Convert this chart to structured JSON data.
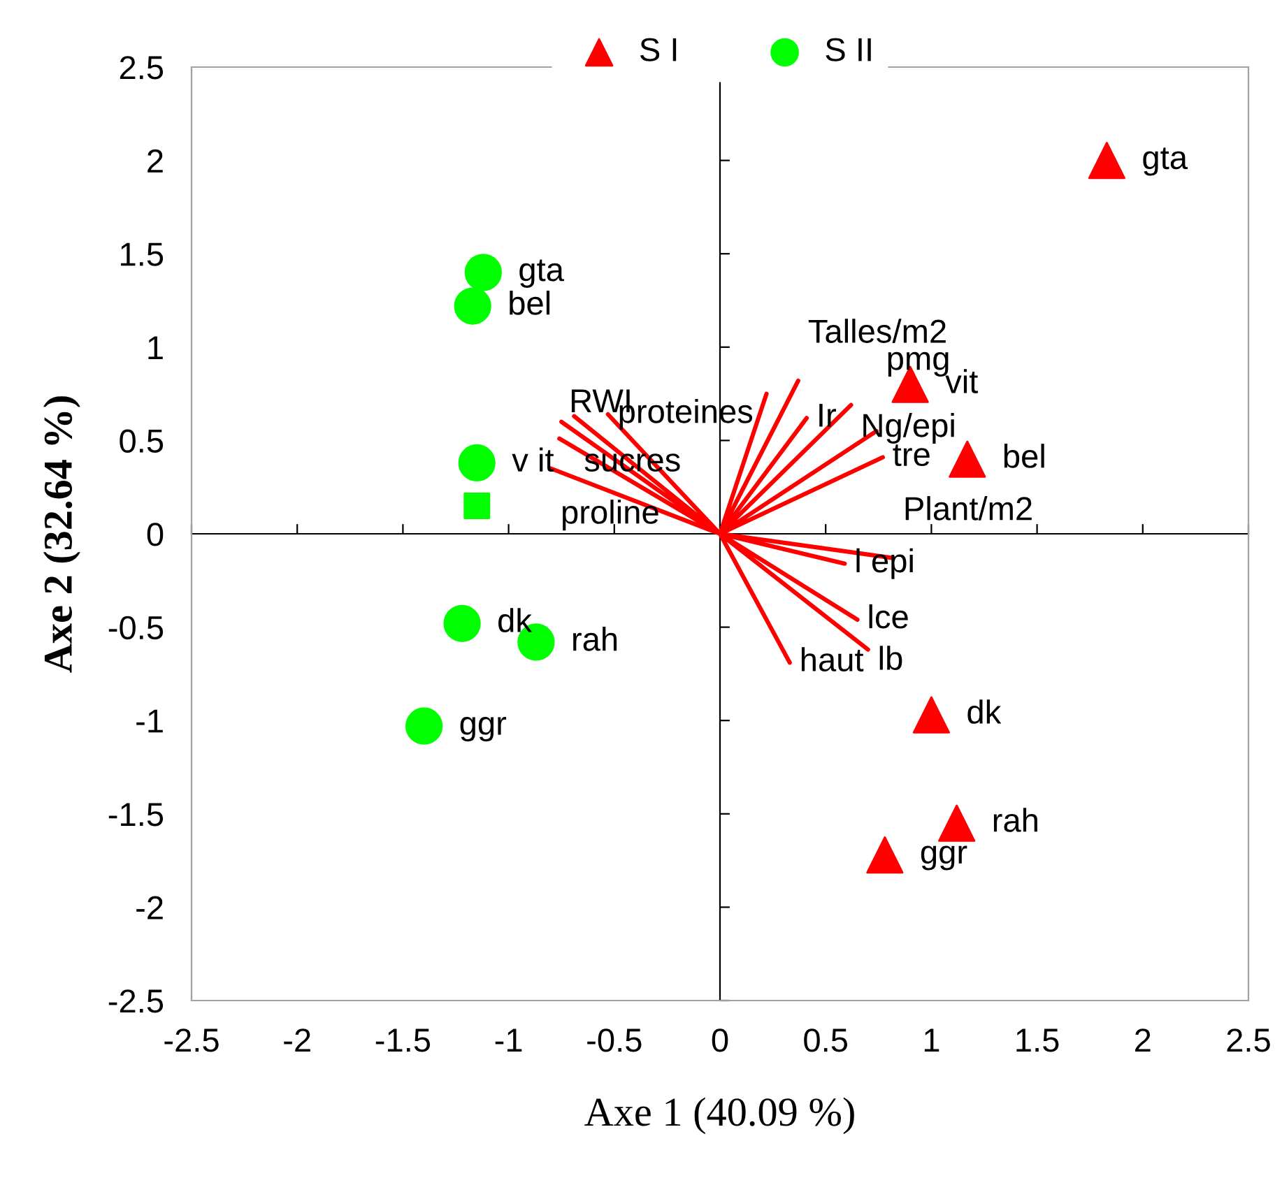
{
  "chart_data": {
    "type": "scatter",
    "xlabel": "Axe 1 (40.09 %)",
    "ylabel": "Axe 2 (32.64 %)",
    "xlim": [
      -2.5,
      2.5
    ],
    "ylim": [
      -2.5,
      2.5
    ],
    "xticks": [
      -2.5,
      -2,
      -1.5,
      -1,
      -0.5,
      0,
      0.5,
      1,
      1.5,
      2,
      2.5
    ],
    "yticks": [
      -2.5,
      -2,
      -1.5,
      -1,
      -0.5,
      0,
      0.5,
      1,
      1.5,
      2,
      2.5
    ],
    "legend": "top",
    "series": [
      {
        "name": "S I",
        "marker": "triangle",
        "color": "#ff0000",
        "x": [
          1.83,
          1.17,
          0.9,
          1.0,
          1.12,
          0.78
        ],
        "values": [
          2.0,
          0.4,
          0.8,
          -0.97,
          -1.55,
          -1.72
        ]
      },
      {
        "name": "S II",
        "marker": "circle",
        "color": "#00ff00",
        "x": [
          -1.12,
          -1.17,
          -1.15,
          -1.22,
          -0.87,
          -1.4
        ],
        "values": [
          1.4,
          1.22,
          0.38,
          -0.48,
          -0.58,
          -1.03
        ]
      },
      {
        "marker": "square",
        "color": "#00ff00",
        "x": [
          -1.15
        ],
        "values": [
          0.15
        ]
      },
      {
        "type": "line",
        "color": "#ff0000",
        "x": [
          0,
          -0.8,
          null,
          0,
          -0.76,
          null,
          0,
          -0.75,
          null,
          0,
          -0.69,
          null,
          0,
          -0.53,
          null,
          0,
          0.22,
          null,
          0,
          0.37,
          null,
          0,
          0.41,
          null,
          0,
          0.62,
          null,
          0,
          0.74,
          null,
          0,
          0.77,
          null,
          0,
          0.82,
          null,
          0,
          0.59,
          null,
          0,
          0.65,
          null,
          0,
          0.7,
          null,
          0,
          0.33
        ],
        "values": [
          0,
          0.35,
          null,
          0,
          0.51,
          null,
          0,
          0.6,
          null,
          0,
          0.63,
          null,
          0,
          0.64,
          null,
          0,
          0.75,
          null,
          0,
          0.82,
          null,
          0,
          0.62,
          null,
          0,
          0.69,
          null,
          0,
          0.55,
          null,
          0,
          0.41,
          null,
          0,
          -0.13,
          null,
          0,
          -0.16,
          null,
          0,
          -0.46,
          null,
          0,
          -0.62,
          null,
          0,
          -0.69
        ]
      }
    ],
    "annotations": [
      {
        "text": "gta",
        "x": 1.83,
        "y": 2.0
      },
      {
        "text": "bel",
        "x": 1.17,
        "y": 0.4
      },
      {
        "text": "vit",
        "x": 0.9,
        "y": 0.8
      },
      {
        "text": "dk",
        "x": 1.0,
        "y": -0.97
      },
      {
        "text": "rah",
        "x": 1.12,
        "y": -1.55
      },
      {
        "text": "ggr",
        "x": 0.78,
        "y": -1.72
      },
      {
        "text": "gta",
        "x": -1.12,
        "y": 1.4
      },
      {
        "text": "bel",
        "x": -1.17,
        "y": 1.22
      },
      {
        "text": "v it",
        "x": -1.15,
        "y": 0.38
      },
      {
        "text": "dk",
        "x": -1.22,
        "y": -0.48
      },
      {
        "text": "rah",
        "x": -0.87,
        "y": -0.58
      },
      {
        "text": "ggr",
        "x": -1.4,
        "y": -1.03
      },
      {
        "text": "proteines",
        "x": -0.53,
        "y": 0.64
      },
      {
        "text": "sucres",
        "x": -0.69,
        "y": 0.63
      },
      {
        "text": "RWI",
        "x": -0.76,
        "y": 0.51
      },
      {
        "text": "proline",
        "x": -0.8,
        "y": 0.35
      },
      {
        "text": "Talles/m2",
        "x": 0.37,
        "y": 0.82
      },
      {
        "text": "Ng/epi",
        "x": 0.62,
        "y": 0.69
      },
      {
        "text": "Ir",
        "x": 0.41,
        "y": 0.62
      },
      {
        "text": "tre",
        "x": 0.77,
        "y": 0.41
      },
      {
        "text": "pmg",
        "x": 0.74,
        "y": 0.55
      },
      {
        "text": "l epi",
        "x": 0.59,
        "y": -0.16
      },
      {
        "text": "Plant/m2",
        "x": 0.82,
        "y": -0.13
      },
      {
        "text": "lce",
        "x": 0.65,
        "y": -0.46
      },
      {
        "text": "lb",
        "x": 0.7,
        "y": -0.62
      },
      {
        "text": "haut",
        "x": 0.33,
        "y": -0.69
      }
    ]
  }
}
